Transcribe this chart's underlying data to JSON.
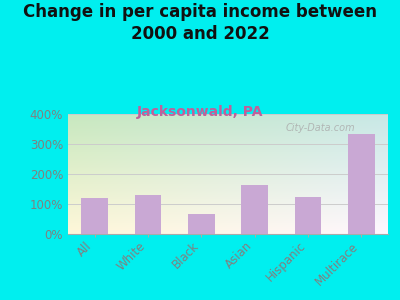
{
  "title": "Change in per capita income between\n2000 and 2022",
  "subtitle": "Jacksonwald, PA",
  "categories": [
    "All",
    "White",
    "Black",
    "Asian",
    "Hispanic",
    "Multirace"
  ],
  "values": [
    120,
    130,
    67,
    163,
    125,
    335
  ],
  "bar_color": "#c9a8d4",
  "background_outer": "#00efef",
  "subtitle_color": "#c0609a",
  "title_color": "#111111",
  "watermark": "City-Data.com",
  "ylim": [
    0,
    400
  ],
  "yticks": [
    0,
    100,
    200,
    300,
    400
  ],
  "tick_color": "#808080",
  "grid_color": "#cccccc",
  "title_fontsize": 12,
  "subtitle_fontsize": 10,
  "tick_fontsize": 8.5,
  "xlabel_fontsize": 8.5,
  "plot_grad_top": "#d0e8c8",
  "plot_grad_bottom": "#f2f0cc"
}
